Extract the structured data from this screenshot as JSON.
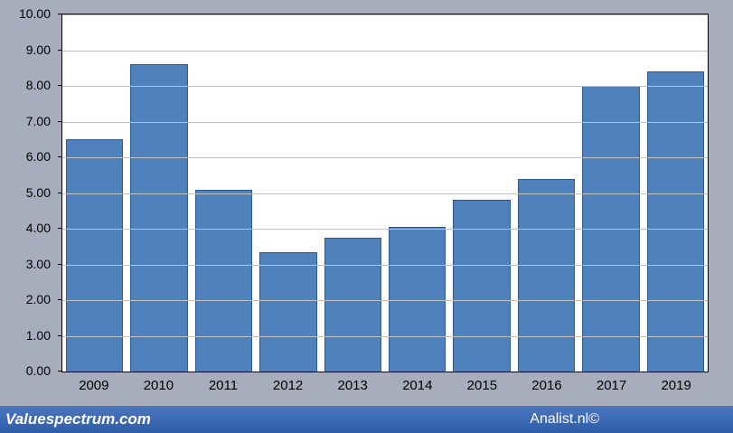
{
  "chart_data": {
    "type": "bar",
    "categories": [
      "2009",
      "2010",
      "2011",
      "2012",
      "2013",
      "2014",
      "2015",
      "2016",
      "2017",
      "2019"
    ],
    "values": [
      6.5,
      8.6,
      5.1,
      3.35,
      3.75,
      4.05,
      4.8,
      5.4,
      8.0,
      8.4
    ],
    "title": "",
    "xlabel": "",
    "ylabel": "",
    "ylim": [
      0,
      10
    ],
    "yticks": [
      "0.00",
      "1.00",
      "2.00",
      "3.00",
      "4.00",
      "5.00",
      "6.00",
      "7.00",
      "8.00",
      "9.00",
      "10.00"
    ],
    "grid": "horizontal",
    "legend": "none",
    "bar_color": "#4f81bd",
    "bar_border": "#2c5a93",
    "plot_background": "#ffffff",
    "page_background": "#a7adbc"
  },
  "footer": {
    "left": "Valuespectrum.com",
    "right": "Analist.nl©"
  }
}
